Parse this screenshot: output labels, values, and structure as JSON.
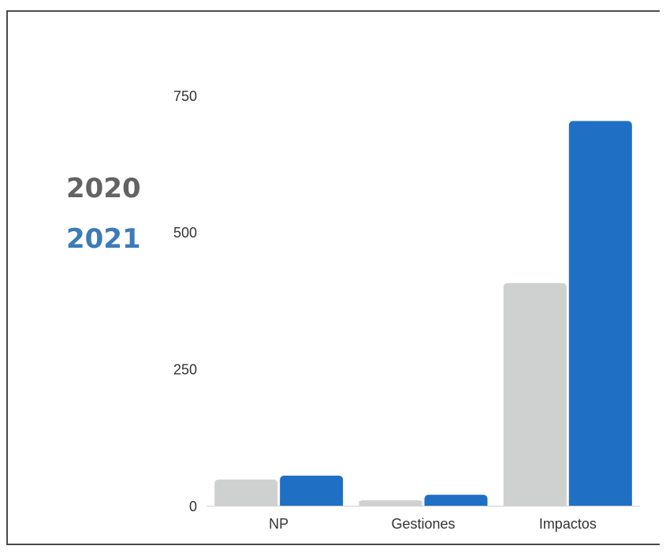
{
  "chart_data": {
    "type": "bar",
    "categories": [
      "NP",
      "Gestiones",
      "Impactos"
    ],
    "series": [
      {
        "name": "2020",
        "color": "#cfd1d0",
        "values": [
          48,
          10,
          407
        ]
      },
      {
        "name": "2021",
        "color": "#1f6fc5",
        "values": [
          55,
          20,
          703
        ]
      }
    ],
    "yticks": [
      "0",
      "250",
      "500",
      "750"
    ],
    "ylim": [
      0,
      780
    ],
    "grid": false,
    "legend_placement": "left"
  },
  "legend": {
    "items": [
      {
        "label": "2020",
        "color": "#636363"
      },
      {
        "label": "2021",
        "color": "#3d7ab8"
      }
    ]
  }
}
